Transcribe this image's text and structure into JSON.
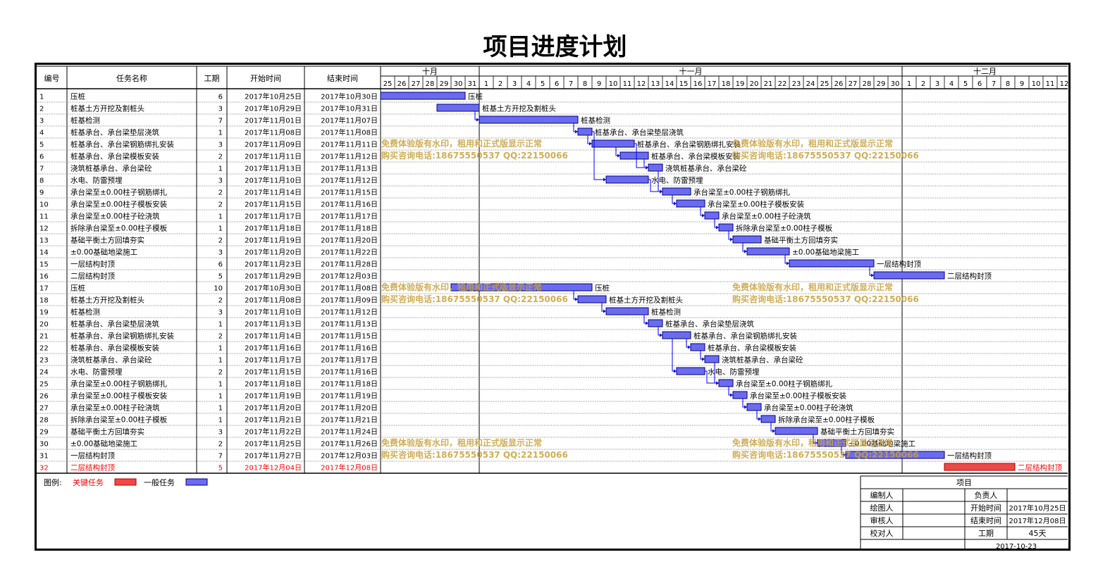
{
  "title": "项目进度计划",
  "colors": {
    "normal": "#6b6bf0",
    "critical": "#f04848",
    "critical_text": "#ff0000",
    "arrow": "#0000ff",
    "watermark": "#c8a03c"
  },
  "chart_data": {
    "type": "gantt",
    "columns": [
      "编号",
      "任务名称",
      "工期",
      "开始时间",
      "结束时间"
    ],
    "months": [
      {
        "label": "十月",
        "days": [
          "25",
          "26",
          "27",
          "28",
          "29",
          "30",
          "31"
        ]
      },
      {
        "label": "十一月",
        "days": [
          "1",
          "2",
          "3",
          "4",
          "5",
          "6",
          "7",
          "8",
          "9",
          "10",
          "11",
          "12",
          "13",
          "14",
          "15",
          "16",
          "17",
          "18",
          "19",
          "20",
          "21",
          "22",
          "23",
          "24",
          "25",
          "26",
          "27",
          "28",
          "29",
          "30"
        ]
      },
      {
        "label": "十二月",
        "days": [
          "1",
          "2",
          "3",
          "4",
          "5",
          "6",
          "7",
          "8",
          "9",
          "10",
          "11",
          "12"
        ]
      }
    ],
    "timeline_start": "2017-10-25",
    "tasks": [
      {
        "id": "1",
        "name": "压桩",
        "duration": "6",
        "start_text": "2017年10月25日",
        "end_text": "2017年10月30日",
        "start": "2017-10-25",
        "end": "2017-10-30",
        "critical": false
      },
      {
        "id": "2",
        "name": "桩基土方开挖及割桩头",
        "duration": "3",
        "start_text": "2017年10月29日",
        "end_text": "2017年10月31日",
        "start": "2017-10-29",
        "end": "2017-10-31",
        "critical": false
      },
      {
        "id": "3",
        "name": "桩基检测",
        "duration": "7",
        "start_text": "2017年11月01日",
        "end_text": "2017年11月07日",
        "start": "2017-11-01",
        "end": "2017-11-07",
        "critical": false
      },
      {
        "id": "4",
        "name": "桩基承台、承台梁垫层浇筑",
        "duration": "1",
        "start_text": "2017年11月08日",
        "end_text": "2017年11月08日",
        "start": "2017-11-08",
        "end": "2017-11-08",
        "critical": false
      },
      {
        "id": "5",
        "name": "桩基承台、承台梁钢筋绑扎安装",
        "duration": "3",
        "start_text": "2017年11月09日",
        "end_text": "2017年11月11日",
        "start": "2017-11-09",
        "end": "2017-11-11",
        "critical": false
      },
      {
        "id": "6",
        "name": "桩基承台、承台梁模板安装",
        "duration": "2",
        "start_text": "2017年11月11日",
        "end_text": "2017年11月12日",
        "start": "2017-11-11",
        "end": "2017-11-12",
        "critical": false
      },
      {
        "id": "7",
        "name": "浇筑桩基承台、承台梁砼",
        "duration": "1",
        "start_text": "2017年11月13日",
        "end_text": "2017年11月13日",
        "start": "2017-11-13",
        "end": "2017-11-13",
        "critical": false
      },
      {
        "id": "8",
        "name": "水电、防雷预埋",
        "duration": "3",
        "start_text": "2017年11月10日",
        "end_text": "2017年11月12日",
        "start": "2017-11-10",
        "end": "2017-11-12",
        "critical": false
      },
      {
        "id": "9",
        "name": "承台梁至±0.00柱子钢筋绑扎",
        "duration": "2",
        "start_text": "2017年11月14日",
        "end_text": "2017年11月15日",
        "start": "2017-11-14",
        "end": "2017-11-15",
        "critical": false
      },
      {
        "id": "10",
        "name": "承台梁至±0.00柱子模板安装",
        "duration": "2",
        "start_text": "2017年11月15日",
        "end_text": "2017年11月16日",
        "start": "2017-11-15",
        "end": "2017-11-16",
        "critical": false
      },
      {
        "id": "11",
        "name": "承台梁至±0.00柱子砼浇筑",
        "duration": "1",
        "start_text": "2017年11月17日",
        "end_text": "2017年11月17日",
        "start": "2017-11-17",
        "end": "2017-11-17",
        "critical": false
      },
      {
        "id": "12",
        "name": "拆除承台梁至±0.00柱子模板",
        "duration": "1",
        "start_text": "2017年11月18日",
        "end_text": "2017年11月18日",
        "start": "2017-11-18",
        "end": "2017-11-18",
        "critical": false
      },
      {
        "id": "13",
        "name": "基础平衡土方回填夯实",
        "duration": "2",
        "start_text": "2017年11月19日",
        "end_text": "2017年11月20日",
        "start": "2017-11-19",
        "end": "2017-11-20",
        "critical": false
      },
      {
        "id": "14",
        "name": "±0.00基础地梁施工",
        "duration": "3",
        "start_text": "2017年11月20日",
        "end_text": "2017年11月22日",
        "start": "2017-11-20",
        "end": "2017-11-22",
        "critical": false
      },
      {
        "id": "15",
        "name": "一层结构封顶",
        "duration": "6",
        "start_text": "2017年11月23日",
        "end_text": "2017年11月28日",
        "start": "2017-11-23",
        "end": "2017-11-28",
        "critical": false
      },
      {
        "id": "16",
        "name": "二层结构封顶",
        "duration": "5",
        "start_text": "2017年11月29日",
        "end_text": "2017年12月03日",
        "start": "2017-11-29",
        "end": "2017-12-03",
        "critical": false
      },
      {
        "id": "17",
        "name": "压桩",
        "duration": "10",
        "start_text": "2017年10月30日",
        "end_text": "2017年11月08日",
        "start": "2017-10-30",
        "end": "2017-11-08",
        "critical": false
      },
      {
        "id": "18",
        "name": "桩基土方开挖及割桩头",
        "duration": "2",
        "start_text": "2017年11月08日",
        "end_text": "2017年11月09日",
        "start": "2017-11-08",
        "end": "2017-11-09",
        "critical": false
      },
      {
        "id": "19",
        "name": "桩基检测",
        "duration": "3",
        "start_text": "2017年11月10日",
        "end_text": "2017年11月12日",
        "start": "2017-11-10",
        "end": "2017-11-12",
        "critical": false
      },
      {
        "id": "20",
        "name": "桩基承台、承台梁垫层浇筑",
        "duration": "1",
        "start_text": "2017年11月13日",
        "end_text": "2017年11月13日",
        "start": "2017-11-13",
        "end": "2017-11-13",
        "critical": false
      },
      {
        "id": "21",
        "name": "桩基承台、承台梁钢筋绑扎安装",
        "duration": "2",
        "start_text": "2017年11月14日",
        "end_text": "2017年11月15日",
        "start": "2017-11-14",
        "end": "2017-11-15",
        "critical": false
      },
      {
        "id": "22",
        "name": "桩基承台、承台梁模板安装",
        "duration": "1",
        "start_text": "2017年11月16日",
        "end_text": "2017年11月16日",
        "start": "2017-11-16",
        "end": "2017-11-16",
        "critical": false
      },
      {
        "id": "23",
        "name": "浇筑桩基承台、承台梁砼",
        "duration": "1",
        "start_text": "2017年11月17日",
        "end_text": "2017年11月17日",
        "start": "2017-11-17",
        "end": "2017-11-17",
        "critical": false
      },
      {
        "id": "24",
        "name": "水电、防雷预埋",
        "duration": "2",
        "start_text": "2017年11月15日",
        "end_text": "2017年11月16日",
        "start": "2017-11-15",
        "end": "2017-11-16",
        "critical": false
      },
      {
        "id": "25",
        "name": "承台梁至±0.00柱子钢筋绑扎",
        "duration": "1",
        "start_text": "2017年11月18日",
        "end_text": "2017年11月18日",
        "start": "2017-11-18",
        "end": "2017-11-18",
        "critical": false
      },
      {
        "id": "26",
        "name": "承台梁至±0.00柱子模板安装",
        "duration": "1",
        "start_text": "2017年11月19日",
        "end_text": "2017年11月19日",
        "start": "2017-11-19",
        "end": "2017-11-19",
        "critical": false
      },
      {
        "id": "27",
        "name": "承台梁至±0.00柱子砼浇筑",
        "duration": "1",
        "start_text": "2017年11月20日",
        "end_text": "2017年11月20日",
        "start": "2017-11-20",
        "end": "2017-11-20",
        "critical": false
      },
      {
        "id": "28",
        "name": "拆除承台梁至±0.00柱子模板",
        "duration": "1",
        "start_text": "2017年11月21日",
        "end_text": "2017年11月21日",
        "start": "2017-11-21",
        "end": "2017-11-21",
        "critical": false
      },
      {
        "id": "29",
        "name": "基础平衡土方回填夯实",
        "duration": "3",
        "start_text": "2017年11月22日",
        "end_text": "2017年11月24日",
        "start": "2017-11-22",
        "end": "2017-11-24",
        "critical": false
      },
      {
        "id": "30",
        "name": "±0.00基础地梁施工",
        "duration": "2",
        "start_text": "2017年11月25日",
        "end_text": "2017年11月26日",
        "start": "2017-11-25",
        "end": "2017-11-26",
        "critical": false
      },
      {
        "id": "31",
        "name": "一层结构封顶",
        "duration": "7",
        "start_text": "2017年11月27日",
        "end_text": "2017年12月03日",
        "start": "2017-11-27",
        "end": "2017-12-03",
        "critical": false
      },
      {
        "id": "32",
        "name": "二层结构封顶",
        "duration": "5",
        "start_text": "2017年12月04日",
        "end_text": "2017年12月08日",
        "start": "2017-12-04",
        "end": "2017-12-08",
        "critical": true
      }
    ],
    "links": [
      [
        2,
        3
      ],
      [
        3,
        4
      ],
      [
        4,
        5
      ],
      [
        4,
        8
      ],
      [
        5,
        6
      ],
      [
        5,
        7
      ],
      [
        6,
        7
      ],
      [
        7,
        9
      ],
      [
        8,
        9
      ],
      [
        9,
        10
      ],
      [
        10,
        11
      ],
      [
        11,
        12
      ],
      [
        12,
        13
      ],
      [
        13,
        14
      ],
      [
        14,
        15
      ],
      [
        15,
        16
      ],
      [
        17,
        18
      ],
      [
        18,
        19
      ],
      [
        19,
        20
      ],
      [
        20,
        21
      ],
      [
        21,
        22
      ],
      [
        22,
        23
      ],
      [
        21,
        24
      ],
      [
        23,
        25
      ],
      [
        24,
        25
      ],
      [
        25,
        26
      ],
      [
        26,
        27
      ],
      [
        27,
        28
      ],
      [
        28,
        29
      ],
      [
        29,
        30
      ],
      [
        30,
        31
      ]
    ],
    "legend": {
      "label": "图例:",
      "critical_label": "关键任务",
      "normal_label": "一般任务"
    },
    "watermarks": [
      {
        "line1": "免费体验版有水印，租用和正式版显示正常",
        "line2": "购买咨询电话:18675550537 QQ:22150066"
      },
      {
        "line1": "免费体验版有水印，租用和正式版显示正常",
        "line2": "购买咨询电话:18675550537 QQ:22150066"
      },
      {
        "line1": "免费体验版有水印，租用和正式版显示正常",
        "line2": "购买咨询电话:18675550537 QQ:22150066"
      },
      {
        "line1": "免费体验版有水印，租用和正式版显示正常",
        "line2": "购买咨询电话:18675550537 QQ:22150066"
      },
      {
        "line1": "免费体验版有水印，租用和正式版显示正常",
        "line2": "购买咨询电话:18675550537 QQ:22150066"
      },
      {
        "line1": "免费体验版有水印，租用和正式版显示正常",
        "line2": "购买咨询电话:18675550537 QQ:22150066"
      }
    ],
    "info_box": {
      "header": "项目",
      "rows": [
        [
          "编制人",
          "",
          "负责人",
          ""
        ],
        [
          "绘图人",
          "",
          "开始时间",
          "2017年10月25日"
        ],
        [
          "审核人",
          "",
          "结束时间",
          "2017年12月08日"
        ],
        [
          "校对人",
          "",
          "工期",
          "45天"
        ]
      ],
      "date": "2017-10-23"
    }
  }
}
